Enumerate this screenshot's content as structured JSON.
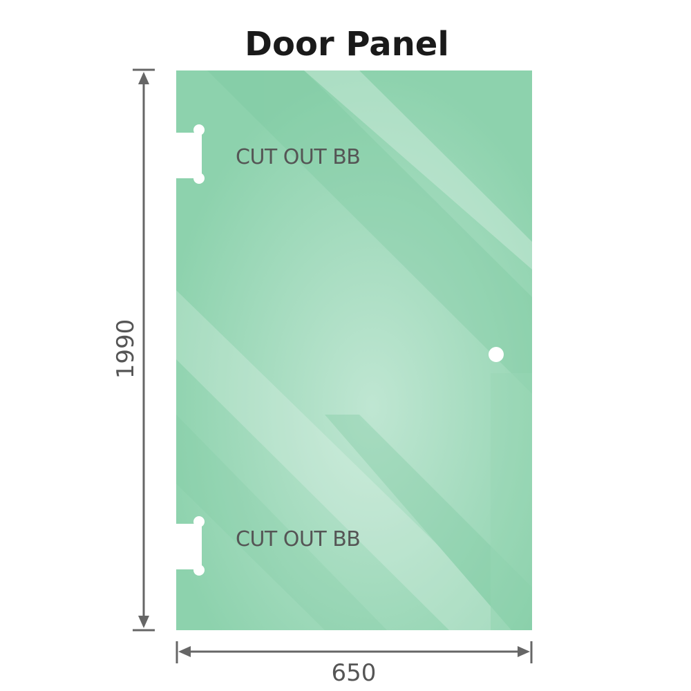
{
  "title": "Door Panel",
  "cutout_labels": [
    "CUT OUT BB",
    "CUT OUT BB"
  ],
  "dimensions": {
    "height": "1990",
    "width": "650"
  },
  "colors": {
    "glass": "#86cfa8",
    "glass_light": "#bde6d0",
    "dimension_line": "#666666",
    "title": "#1a1a1a"
  },
  "features": {
    "cutouts": 2,
    "handle_hole": 1
  }
}
